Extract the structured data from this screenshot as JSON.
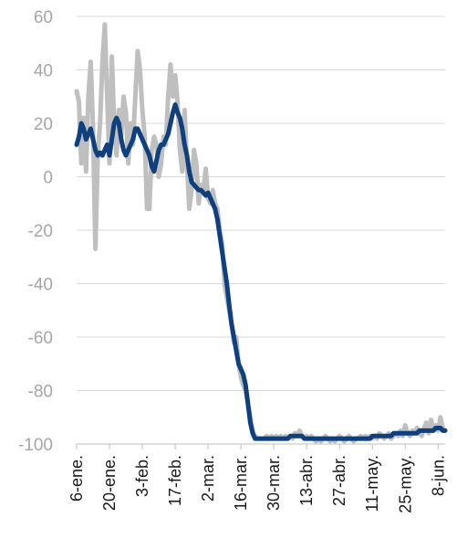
{
  "chart_data": {
    "type": "line",
    "title": "",
    "xlabel": "",
    "ylabel": "",
    "ylim": [
      -100,
      60
    ],
    "y_ticks": [
      60,
      40,
      20,
      0,
      -20,
      -40,
      -60,
      -80,
      -100
    ],
    "y_tick_labels": [
      "60",
      "40",
      "20",
      "0",
      "-20",
      "-40",
      "-60",
      "-80",
      "-100"
    ],
    "x_tick_labels": [
      "6-ene.",
      "20-ene.",
      "3-feb.",
      "17-feb.",
      "2-mar.",
      "16-mar.",
      "30-mar.",
      "13-abr.",
      "27-abr.",
      "11-may.",
      "25-may.",
      "8-jun."
    ],
    "x_tick_days": [
      0,
      14,
      28,
      42,
      56,
      70,
      84,
      98,
      112,
      126,
      140,
      154
    ],
    "x_range_days": [
      0,
      157
    ],
    "grid": "horizontal",
    "legend": "none",
    "series": [
      {
        "style": "daily",
        "color": "#bfbfbf",
        "points": [
          [
            0,
            32
          ],
          [
            1,
            28
          ],
          [
            2,
            5
          ],
          [
            3,
            22
          ],
          [
            4,
            2
          ],
          [
            5,
            30
          ],
          [
            6,
            43
          ],
          [
            7,
            18
          ],
          [
            8,
            -27
          ],
          [
            9,
            8
          ],
          [
            10,
            20
          ],
          [
            11,
            43
          ],
          [
            12,
            57
          ],
          [
            13,
            30
          ],
          [
            14,
            5
          ],
          [
            15,
            45
          ],
          [
            16,
            20
          ],
          [
            17,
            8
          ],
          [
            18,
            25
          ],
          [
            19,
            15
          ],
          [
            20,
            30
          ],
          [
            21,
            24
          ],
          [
            22,
            5
          ],
          [
            23,
            20
          ],
          [
            24,
            12
          ],
          [
            25,
            30
          ],
          [
            26,
            47
          ],
          [
            27,
            40
          ],
          [
            28,
            25
          ],
          [
            29,
            15
          ],
          [
            30,
            -12
          ],
          [
            31,
            -12
          ],
          [
            32,
            10
          ],
          [
            33,
            15
          ],
          [
            34,
            12
          ],
          [
            35,
            0
          ],
          [
            36,
            5
          ],
          [
            37,
            15
          ],
          [
            38,
            12
          ],
          [
            39,
            30
          ],
          [
            40,
            42
          ],
          [
            41,
            30
          ],
          [
            42,
            38
          ],
          [
            43,
            28
          ],
          [
            44,
            10
          ],
          [
            45,
            2
          ],
          [
            46,
            25
          ],
          [
            47,
            5
          ],
          [
            48,
            -12
          ],
          [
            49,
            -5
          ],
          [
            50,
            10
          ],
          [
            51,
            5
          ],
          [
            52,
            -10
          ],
          [
            53,
            -3
          ],
          [
            54,
            -5
          ],
          [
            55,
            3
          ],
          [
            56,
            -8
          ],
          [
            57,
            -10
          ],
          [
            58,
            -5
          ],
          [
            59,
            -10
          ],
          [
            60,
            -12
          ],
          [
            61,
            -20
          ],
          [
            62,
            -25
          ],
          [
            63,
            -40
          ],
          [
            64,
            -45
          ],
          [
            65,
            -50
          ],
          [
            66,
            -55
          ],
          [
            67,
            -62
          ],
          [
            68,
            -60
          ],
          [
            69,
            -70
          ],
          [
            70,
            -75
          ],
          [
            71,
            -78
          ],
          [
            72,
            -80
          ],
          [
            73,
            -85
          ],
          [
            74,
            -90
          ],
          [
            75,
            -95
          ],
          [
            76,
            -97
          ],
          [
            77,
            -98
          ],
          [
            78,
            -98
          ],
          [
            79,
            -98
          ],
          [
            80,
            -98
          ],
          [
            81,
            -97
          ],
          [
            82,
            -98
          ],
          [
            83,
            -97
          ],
          [
            84,
            -98
          ],
          [
            85,
            -97
          ],
          [
            86,
            -98
          ],
          [
            87,
            -97
          ],
          [
            88,
            -98
          ],
          [
            89,
            -97
          ],
          [
            90,
            -98
          ],
          [
            91,
            -97
          ],
          [
            92,
            -98
          ],
          [
            93,
            -96
          ],
          [
            94,
            -97
          ],
          [
            95,
            -95
          ],
          [
            96,
            -97
          ],
          [
            97,
            -98
          ],
          [
            98,
            -97
          ],
          [
            99,
            -98
          ],
          [
            100,
            -97
          ],
          [
            101,
            -98
          ],
          [
            102,
            -99
          ],
          [
            103,
            -98
          ],
          [
            104,
            -99
          ],
          [
            105,
            -98
          ],
          [
            106,
            -97
          ],
          [
            107,
            -98
          ],
          [
            108,
            -99
          ],
          [
            109,
            -98
          ],
          [
            110,
            -99
          ],
          [
            111,
            -98
          ],
          [
            112,
            -97
          ],
          [
            113,
            -98
          ],
          [
            114,
            -99
          ],
          [
            115,
            -98
          ],
          [
            116,
            -97
          ],
          [
            117,
            -98
          ],
          [
            118,
            -99
          ],
          [
            119,
            -98
          ],
          [
            120,
            -98
          ],
          [
            121,
            -97
          ],
          [
            122,
            -98
          ],
          [
            123,
            -97
          ],
          [
            124,
            -98
          ],
          [
            125,
            -97
          ],
          [
            126,
            -98
          ],
          [
            127,
            -97
          ],
          [
            128,
            -98
          ],
          [
            129,
            -96
          ],
          [
            130,
            -97
          ],
          [
            131,
            -98
          ],
          [
            132,
            -97
          ],
          [
            133,
            -96
          ],
          [
            134,
            -98
          ],
          [
            135,
            -97
          ],
          [
            136,
            -96
          ],
          [
            137,
            -97
          ],
          [
            138,
            -95
          ],
          [
            139,
            -97
          ],
          [
            140,
            -93
          ],
          [
            141,
            -96
          ],
          [
            142,
            -97
          ],
          [
            143,
            -95
          ],
          [
            144,
            -96
          ],
          [
            145,
            -94
          ],
          [
            146,
            -95
          ],
          [
            147,
            -97
          ],
          [
            148,
            -94
          ],
          [
            149,
            -92
          ],
          [
            150,
            -96
          ],
          [
            151,
            -91
          ],
          [
            152,
            -95
          ],
          [
            153,
            -93
          ],
          [
            154,
            -95
          ],
          [
            155,
            -90
          ],
          [
            156,
            -94
          ],
          [
            157,
            -95
          ]
        ]
      },
      {
        "style": "smoothed",
        "color": "#0e3f7e",
        "points": [
          [
            0,
            12
          ],
          [
            1,
            15
          ],
          [
            2,
            20
          ],
          [
            3,
            18
          ],
          [
            4,
            14
          ],
          [
            5,
            16
          ],
          [
            6,
            18
          ],
          [
            7,
            14
          ],
          [
            8,
            10
          ],
          [
            9,
            8
          ],
          [
            10,
            9
          ],
          [
            11,
            8
          ],
          [
            12,
            10
          ],
          [
            13,
            12
          ],
          [
            14,
            8
          ],
          [
            15,
            14
          ],
          [
            16,
            20
          ],
          [
            17,
            22
          ],
          [
            18,
            20
          ],
          [
            19,
            14
          ],
          [
            20,
            10
          ],
          [
            21,
            8
          ],
          [
            22,
            10
          ],
          [
            23,
            12
          ],
          [
            24,
            14
          ],
          [
            25,
            18
          ],
          [
            26,
            18
          ],
          [
            27,
            16
          ],
          [
            28,
            14
          ],
          [
            29,
            12
          ],
          [
            30,
            10
          ],
          [
            31,
            8
          ],
          [
            32,
            4
          ],
          [
            33,
            2
          ],
          [
            34,
            6
          ],
          [
            35,
            10
          ],
          [
            36,
            12
          ],
          [
            37,
            12
          ],
          [
            38,
            14
          ],
          [
            39,
            16
          ],
          [
            40,
            20
          ],
          [
            41,
            24
          ],
          [
            42,
            27
          ],
          [
            43,
            24
          ],
          [
            44,
            22
          ],
          [
            45,
            18
          ],
          [
            46,
            12
          ],
          [
            47,
            8
          ],
          [
            48,
            2
          ],
          [
            49,
            -2
          ],
          [
            50,
            -3
          ],
          [
            51,
            -4
          ],
          [
            52,
            -5
          ],
          [
            53,
            -5
          ],
          [
            54,
            -6
          ],
          [
            55,
            -7
          ],
          [
            56,
            -6
          ],
          [
            57,
            -8
          ],
          [
            58,
            -10
          ],
          [
            59,
            -12
          ],
          [
            60,
            -16
          ],
          [
            61,
            -22
          ],
          [
            62,
            -28
          ],
          [
            63,
            -34
          ],
          [
            64,
            -40
          ],
          [
            65,
            -48
          ],
          [
            66,
            -55
          ],
          [
            67,
            -60
          ],
          [
            68,
            -65
          ],
          [
            69,
            -70
          ],
          [
            70,
            -72
          ],
          [
            71,
            -74
          ],
          [
            72,
            -78
          ],
          [
            73,
            -85
          ],
          [
            74,
            -92
          ],
          [
            75,
            -96
          ],
          [
            76,
            -98
          ],
          [
            77,
            -98
          ],
          [
            78,
            -98
          ],
          [
            79,
            -98
          ],
          [
            80,
            -98
          ],
          [
            81,
            -98
          ],
          [
            82,
            -98
          ],
          [
            83,
            -98
          ],
          [
            84,
            -98
          ],
          [
            85,
            -98
          ],
          [
            86,
            -98
          ],
          [
            87,
            -98
          ],
          [
            88,
            -98
          ],
          [
            89,
            -98
          ],
          [
            90,
            -98
          ],
          [
            91,
            -97
          ],
          [
            92,
            -97
          ],
          [
            93,
            -97
          ],
          [
            94,
            -97
          ],
          [
            95,
            -97
          ],
          [
            96,
            -97
          ],
          [
            97,
            -98
          ],
          [
            98,
            -98
          ],
          [
            99,
            -98
          ],
          [
            100,
            -98
          ],
          [
            101,
            -98
          ],
          [
            102,
            -98
          ],
          [
            103,
            -98
          ],
          [
            104,
            -98
          ],
          [
            105,
            -98
          ],
          [
            106,
            -98
          ],
          [
            107,
            -98
          ],
          [
            108,
            -98
          ],
          [
            109,
            -98
          ],
          [
            110,
            -98
          ],
          [
            111,
            -98
          ],
          [
            112,
            -98
          ],
          [
            113,
            -98
          ],
          [
            114,
            -98
          ],
          [
            115,
            -98
          ],
          [
            116,
            -98
          ],
          [
            117,
            -98
          ],
          [
            118,
            -98
          ],
          [
            119,
            -98
          ],
          [
            120,
            -98
          ],
          [
            121,
            -98
          ],
          [
            122,
            -98
          ],
          [
            123,
            -98
          ],
          [
            124,
            -98
          ],
          [
            125,
            -98
          ],
          [
            126,
            -97
          ],
          [
            127,
            -97
          ],
          [
            128,
            -97
          ],
          [
            129,
            -97
          ],
          [
            130,
            -97
          ],
          [
            131,
            -97
          ],
          [
            132,
            -97
          ],
          [
            133,
            -97
          ],
          [
            134,
            -97
          ],
          [
            135,
            -96
          ],
          [
            136,
            -96
          ],
          [
            137,
            -96
          ],
          [
            138,
            -96
          ],
          [
            139,
            -96
          ],
          [
            140,
            -96
          ],
          [
            141,
            -96
          ],
          [
            142,
            -96
          ],
          [
            143,
            -96
          ],
          [
            144,
            -96
          ],
          [
            145,
            -96
          ],
          [
            146,
            -95
          ],
          [
            147,
            -95
          ],
          [
            148,
            -95
          ],
          [
            149,
            -95
          ],
          [
            150,
            -95
          ],
          [
            151,
            -95
          ],
          [
            152,
            -95
          ],
          [
            153,
            -94
          ],
          [
            154,
            -94
          ],
          [
            155,
            -94
          ],
          [
            156,
            -95
          ],
          [
            157,
            -95
          ]
        ]
      }
    ]
  }
}
